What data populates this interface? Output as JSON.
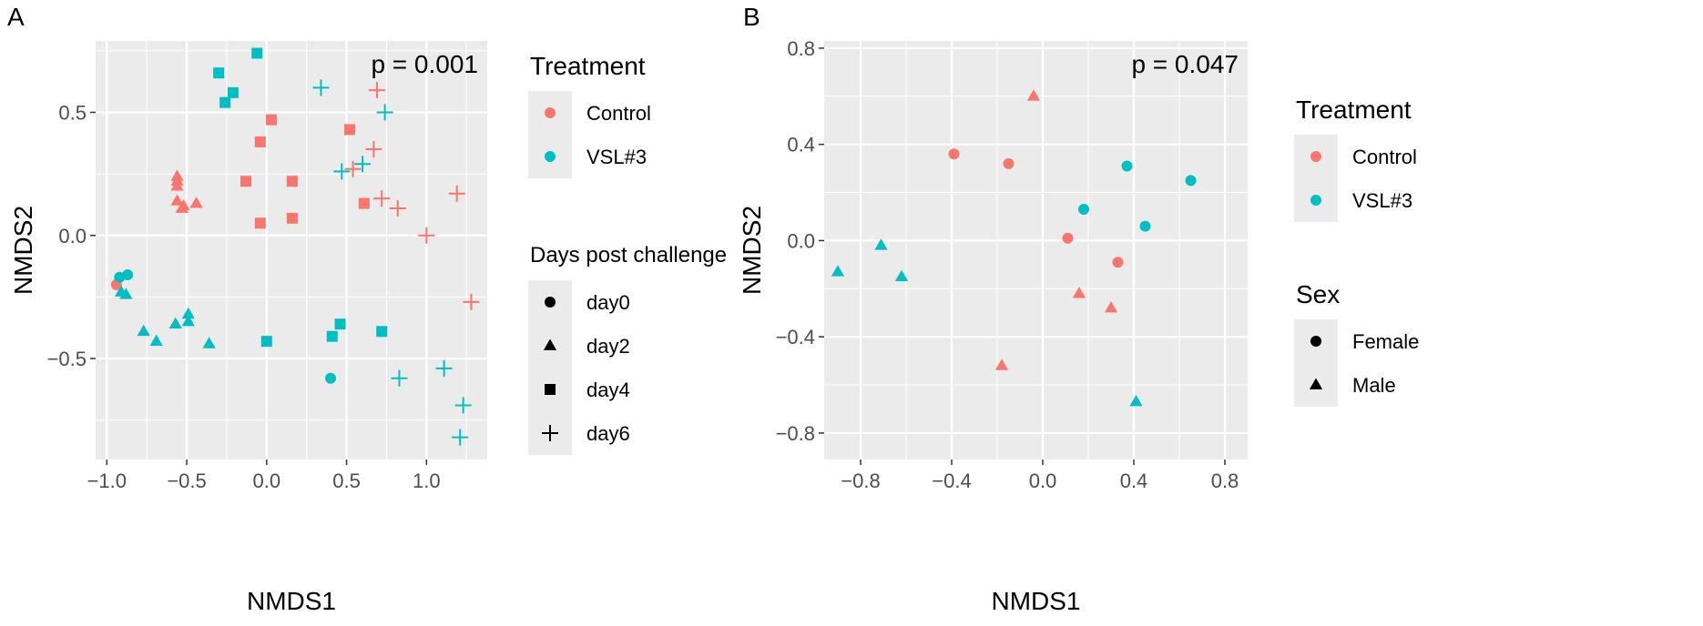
{
  "panels": [
    {
      "label": "A",
      "annotation": "p = 0.001",
      "chart_data": {
        "type": "scatter",
        "xlabel": "NMDS1",
        "ylabel": "NMDS2",
        "xlim": [
          -1.07,
          1.38
        ],
        "ylim": [
          -0.91,
          0.79
        ],
        "xticks": [
          -1.0,
          -0.5,
          0.0,
          0.5,
          1.0
        ],
        "xtick_labels": [
          "-1.0",
          "-0.5",
          "0.0",
          "0.5",
          "1.0"
        ],
        "yticks": [
          -0.5,
          0.0,
          0.5
        ],
        "ytick_labels": [
          "-0.5",
          "0.0",
          "0.5"
        ],
        "grid": true,
        "points": [
          {
            "x": -0.94,
            "y": -0.2,
            "group": "Control",
            "shape": "day0"
          },
          {
            "x": -0.92,
            "y": -0.17,
            "group": "VSL#3",
            "shape": "day0"
          },
          {
            "x": -0.87,
            "y": -0.16,
            "group": "VSL#3",
            "shape": "day0"
          },
          {
            "x": 0.4,
            "y": -0.58,
            "group": "VSL#3",
            "shape": "day0"
          },
          {
            "x": -0.56,
            "y": 0.24,
            "group": "Control",
            "shape": "day2"
          },
          {
            "x": -0.56,
            "y": 0.22,
            "group": "Control",
            "shape": "day2"
          },
          {
            "x": -0.56,
            "y": 0.2,
            "group": "Control",
            "shape": "day2"
          },
          {
            "x": -0.56,
            "y": 0.14,
            "group": "Control",
            "shape": "day2"
          },
          {
            "x": -0.53,
            "y": 0.11,
            "group": "Control",
            "shape": "day2"
          },
          {
            "x": -0.52,
            "y": 0.12,
            "group": "Control",
            "shape": "day2"
          },
          {
            "x": -0.44,
            "y": 0.13,
            "group": "Control",
            "shape": "day2"
          },
          {
            "x": -0.91,
            "y": -0.23,
            "group": "VSL#3",
            "shape": "day2"
          },
          {
            "x": -0.88,
            "y": -0.24,
            "group": "VSL#3",
            "shape": "day2"
          },
          {
            "x": -0.77,
            "y": -0.39,
            "group": "VSL#3",
            "shape": "day2"
          },
          {
            "x": -0.69,
            "y": -0.43,
            "group": "VSL#3",
            "shape": "day2"
          },
          {
            "x": -0.57,
            "y": -0.36,
            "group": "VSL#3",
            "shape": "day2"
          },
          {
            "x": -0.49,
            "y": -0.32,
            "group": "VSL#3",
            "shape": "day2"
          },
          {
            "x": -0.49,
            "y": -0.35,
            "group": "VSL#3",
            "shape": "day2"
          },
          {
            "x": -0.36,
            "y": -0.44,
            "group": "VSL#3",
            "shape": "day2"
          },
          {
            "x": -0.04,
            "y": 0.38,
            "group": "Control",
            "shape": "day4"
          },
          {
            "x": 0.03,
            "y": 0.47,
            "group": "Control",
            "shape": "day4"
          },
          {
            "x": -0.13,
            "y": 0.22,
            "group": "Control",
            "shape": "day4"
          },
          {
            "x": 0.16,
            "y": 0.22,
            "group": "Control",
            "shape": "day4"
          },
          {
            "x": 0.16,
            "y": 0.07,
            "group": "Control",
            "shape": "day4"
          },
          {
            "x": -0.04,
            "y": 0.05,
            "group": "Control",
            "shape": "day4"
          },
          {
            "x": 0.52,
            "y": 0.43,
            "group": "Control",
            "shape": "day4"
          },
          {
            "x": 0.61,
            "y": 0.13,
            "group": "Control",
            "shape": "day4"
          },
          {
            "x": -0.06,
            "y": 0.74,
            "group": "VSL#3",
            "shape": "day4"
          },
          {
            "x": -0.3,
            "y": 0.66,
            "group": "VSL#3",
            "shape": "day4"
          },
          {
            "x": -0.21,
            "y": 0.58,
            "group": "VSL#3",
            "shape": "day4"
          },
          {
            "x": -0.26,
            "y": 0.54,
            "group": "VSL#3",
            "shape": "day4"
          },
          {
            "x": 0.0,
            "y": -0.43,
            "group": "VSL#3",
            "shape": "day4"
          },
          {
            "x": 0.46,
            "y": -0.36,
            "group": "VSL#3",
            "shape": "day4"
          },
          {
            "x": 0.41,
            "y": -0.41,
            "group": "VSL#3",
            "shape": "day4"
          },
          {
            "x": 0.72,
            "y": -0.39,
            "group": "VSL#3",
            "shape": "day4"
          },
          {
            "x": 0.69,
            "y": 0.59,
            "group": "Control",
            "shape": "day6"
          },
          {
            "x": 0.67,
            "y": 0.35,
            "group": "Control",
            "shape": "day6"
          },
          {
            "x": 0.54,
            "y": 0.27,
            "group": "Control",
            "shape": "day6"
          },
          {
            "x": 0.72,
            "y": 0.15,
            "group": "Control",
            "shape": "day6"
          },
          {
            "x": 0.82,
            "y": 0.11,
            "group": "Control",
            "shape": "day6"
          },
          {
            "x": 1.19,
            "y": 0.17,
            "group": "Control",
            "shape": "day6"
          },
          {
            "x": 1.0,
            "y": 0.0,
            "group": "Control",
            "shape": "day6"
          },
          {
            "x": 1.28,
            "y": -0.27,
            "group": "Control",
            "shape": "day6"
          },
          {
            "x": 0.34,
            "y": 0.6,
            "group": "VSL#3",
            "shape": "day6"
          },
          {
            "x": 0.74,
            "y": 0.5,
            "group": "VSL#3",
            "shape": "day6"
          },
          {
            "x": 0.6,
            "y": 0.29,
            "group": "VSL#3",
            "shape": "day6"
          },
          {
            "x": 0.47,
            "y": 0.26,
            "group": "VSL#3",
            "shape": "day6"
          },
          {
            "x": 0.83,
            "y": -0.58,
            "group": "VSL#3",
            "shape": "day6"
          },
          {
            "x": 1.11,
            "y": -0.54,
            "group": "VSL#3",
            "shape": "day6"
          },
          {
            "x": 1.23,
            "y": -0.69,
            "group": "VSL#3",
            "shape": "day6"
          },
          {
            "x": 1.21,
            "y": -0.82,
            "group": "VSL#3",
            "shape": "day6"
          }
        ]
      },
      "legends": [
        {
          "title": "Treatment",
          "items": [
            {
              "label": "Control",
              "color": "#F8766D",
              "shape": "circle"
            },
            {
              "label": "VSL#3",
              "color": "#00BFC4",
              "shape": "circle"
            }
          ]
        },
        {
          "title": "Days post challenge",
          "items": [
            {
              "label": "day0",
              "color": "#000000",
              "shape": "circle"
            },
            {
              "label": "day2",
              "color": "#000000",
              "shape": "triangle"
            },
            {
              "label": "day4",
              "color": "#000000",
              "shape": "square"
            },
            {
              "label": "day6",
              "color": "#000000",
              "shape": "plus"
            }
          ]
        }
      ]
    },
    {
      "label": "B",
      "annotation": "p = 0.047",
      "chart_data": {
        "type": "scatter",
        "xlabel": "NMDS1",
        "ylabel": "NMDS2",
        "xlim": [
          -0.96,
          0.9
        ],
        "ylim": [
          -0.91,
          0.83
        ],
        "xticks": [
          -0.8,
          -0.4,
          0.0,
          0.4,
          0.8
        ],
        "xtick_labels": [
          "-0.8",
          "-0.4",
          "0.0",
          "0.4",
          "0.8"
        ],
        "yticks": [
          -0.8,
          -0.4,
          0.0,
          0.4,
          0.8
        ],
        "ytick_labels": [
          "-0.8",
          "-0.4",
          "0.0",
          "0.4",
          "0.8"
        ],
        "grid": true,
        "points": [
          {
            "x": -0.39,
            "y": 0.36,
            "group": "Control",
            "shape": "Female"
          },
          {
            "x": -0.15,
            "y": 0.32,
            "group": "Control",
            "shape": "Female"
          },
          {
            "x": 0.11,
            "y": 0.01,
            "group": "Control",
            "shape": "Female"
          },
          {
            "x": 0.33,
            "y": -0.09,
            "group": "Control",
            "shape": "Female"
          },
          {
            "x": -0.04,
            "y": 0.6,
            "group": "Control",
            "shape": "Male"
          },
          {
            "x": 0.16,
            "y": -0.22,
            "group": "Control",
            "shape": "Male"
          },
          {
            "x": 0.3,
            "y": -0.28,
            "group": "Control",
            "shape": "Male"
          },
          {
            "x": -0.18,
            "y": -0.52,
            "group": "Control",
            "shape": "Male"
          },
          {
            "x": 0.37,
            "y": 0.31,
            "group": "VSL#3",
            "shape": "Female"
          },
          {
            "x": 0.65,
            "y": 0.25,
            "group": "VSL#3",
            "shape": "Female"
          },
          {
            "x": 0.18,
            "y": 0.13,
            "group": "VSL#3",
            "shape": "Female"
          },
          {
            "x": 0.45,
            "y": 0.06,
            "group": "VSL#3",
            "shape": "Female"
          },
          {
            "x": -0.9,
            "y": -0.13,
            "group": "VSL#3",
            "shape": "Male"
          },
          {
            "x": -0.71,
            "y": -0.02,
            "group": "VSL#3",
            "shape": "Male"
          },
          {
            "x": -0.62,
            "y": -0.15,
            "group": "VSL#3",
            "shape": "Male"
          },
          {
            "x": 0.41,
            "y": -0.67,
            "group": "VSL#3",
            "shape": "Male"
          }
        ]
      },
      "legends": [
        {
          "title": "Treatment",
          "items": [
            {
              "label": "Control",
              "color": "#F8766D",
              "shape": "circle"
            },
            {
              "label": "VSL#3",
              "color": "#00BFC4",
              "shape": "circle"
            }
          ]
        },
        {
          "title": "Sex",
          "items": [
            {
              "label": "Female",
              "color": "#000000",
              "shape": "circle"
            },
            {
              "label": "Male",
              "color": "#000000",
              "shape": "triangle"
            }
          ]
        }
      ]
    }
  ],
  "colors": {
    "Control": "#F8766D",
    "VSL#3": "#00BFC4",
    "panel_bg": "#EBEBEB",
    "grid": "#FFFFFF"
  },
  "shape_map": [
    {
      "key": "day0",
      "shape": "circle"
    },
    {
      "key": "day2",
      "shape": "triangle"
    },
    {
      "key": "day4",
      "shape": "square"
    },
    {
      "key": "day6",
      "shape": "plus"
    },
    {
      "key": "Female",
      "shape": "circle"
    },
    {
      "key": "Male",
      "shape": "triangle"
    }
  ]
}
